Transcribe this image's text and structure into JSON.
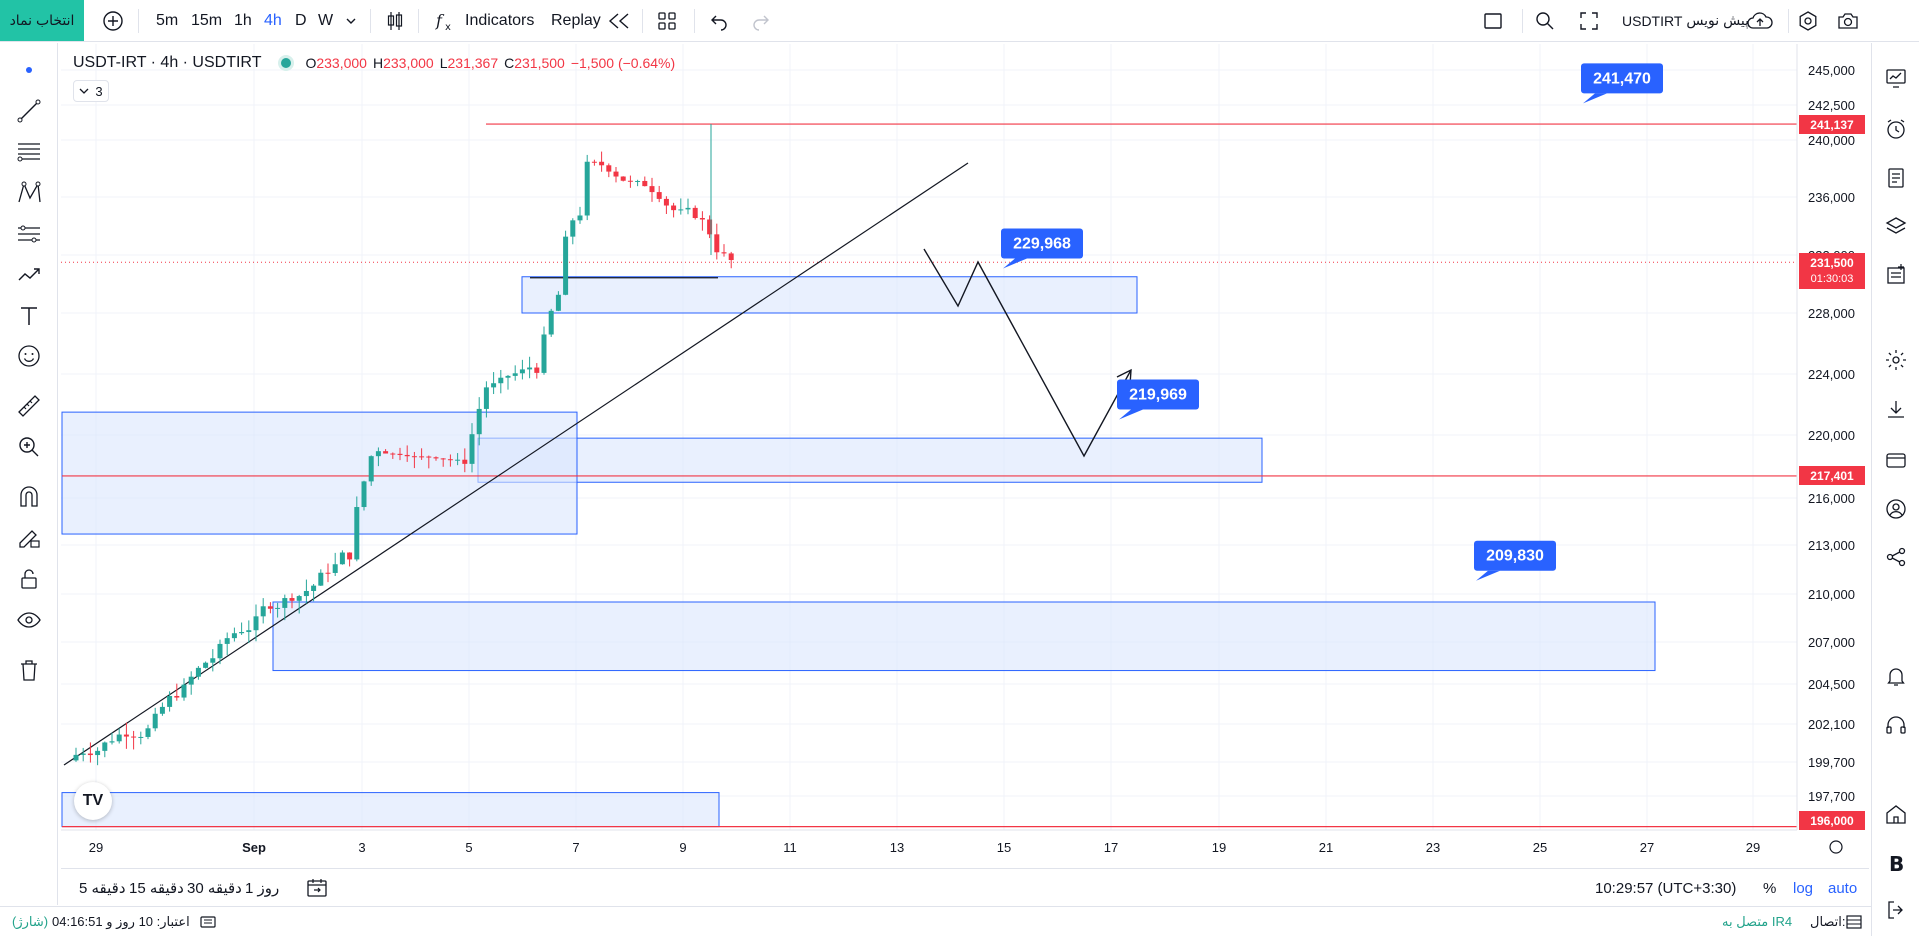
{
  "toolbar": {
    "symbol_search_label": "انتخاب نماد",
    "timeframes": [
      "5m",
      "15m",
      "1h",
      "4h",
      "D",
      "W"
    ],
    "active_timeframe": "4h",
    "indicators_label": "Indicators",
    "replay_label": "Replay",
    "trade_label": "پیش نویس",
    "symbol_right": "USDTIRT"
  },
  "legend": {
    "title": "USDT-IRT · 4h · USDTIRT",
    "open_label": "O",
    "open": "233,000",
    "high_label": "H",
    "high": "233,000",
    "low_label": "L",
    "low": "231,367",
    "close_label": "C",
    "close": "231,500",
    "change": "−1,500 (−0.64%)",
    "indicator_count": "3"
  },
  "price_axis": {
    "ticks": [
      "245,000",
      "242,500",
      "240,000",
      "236,000",
      "232,000",
      "228,000",
      "224,000",
      "220,000",
      "216,000",
      "213,000",
      "210,000",
      "207,000",
      "204,500",
      "202,100",
      "199,700",
      "197,700"
    ],
    "current_price": "231,500",
    "countdown": "01:30:03",
    "line_labels": [
      "241,137",
      "217,401",
      "196,000"
    ]
  },
  "time_axis": {
    "ticks": [
      "29",
      "Sep",
      "3",
      "5",
      "7",
      "9",
      "11",
      "13",
      "15",
      "17",
      "19",
      "21",
      "23",
      "25",
      "27",
      "29"
    ]
  },
  "annotations": [
    "241,470",
    "229,968",
    "219,969",
    "209,830"
  ],
  "chart_data": {
    "type": "candlestick",
    "symbol": "USDT-IRT",
    "interval": "4h",
    "horizontal_levels": [
      241137,
      217401,
      196000
    ],
    "zones": [
      {
        "low": 228000,
        "high": 230500
      },
      {
        "low": 217000,
        "high": 219800
      },
      {
        "low": 213700,
        "high": 221500
      },
      {
        "low": 205300,
        "high": 209500
      },
      {
        "low": 196000,
        "high": 197900
      }
    ],
    "labels": [
      241470,
      229968,
      219969,
      209830
    ],
    "last_close": 231500
  },
  "bottom": {
    "ranges": [
      "5 دقیقه",
      "15 دقیقه",
      "30 دقیقه",
      "1 روز"
    ],
    "clock": "10:29:57 (UTC+3:30)",
    "percent_label": "%",
    "log_label": "log",
    "auto_label": "auto"
  },
  "status": {
    "credit": "اعتبار: 10 روز و 04:16:51",
    "charge": "(شارژ)",
    "connection_label": "اتصال:",
    "connection_value": "متصل به IR4"
  },
  "colors": {
    "accent": "#2962ff",
    "up": "#26a69a",
    "down": "#f23645",
    "zone_fill": "#dbe6fd",
    "zone_border": "#2962ff",
    "symbol_button": "#22c3a6"
  }
}
